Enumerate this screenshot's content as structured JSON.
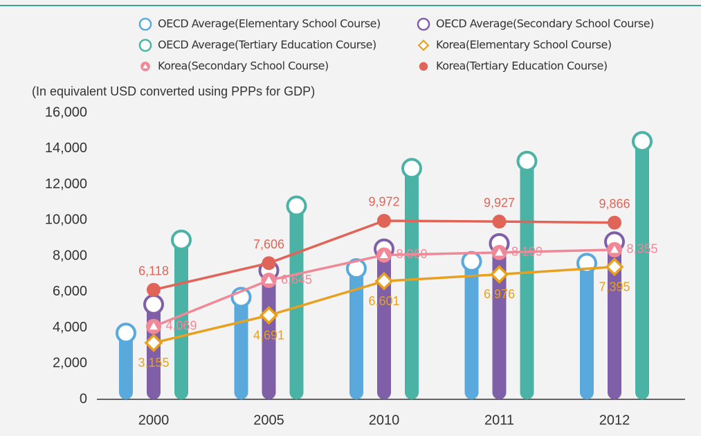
{
  "chart_data": {
    "type": "bar",
    "axis_label": "(In equivalent USD converted using PPPs for GDP)",
    "categories": [
      "2000",
      "2005",
      "2010",
      "2011",
      "2012"
    ],
    "ylim": [
      0,
      16000
    ],
    "yticks": [
      {
        "value": 0,
        "label": "0"
      },
      {
        "value": 2000,
        "label": "2,000"
      },
      {
        "value": 4000,
        "label": "4,000"
      },
      {
        "value": 6000,
        "label": "6,000"
      },
      {
        "value": 8000,
        "label": "8,000"
      },
      {
        "value": 10000,
        "label": "10,000"
      },
      {
        "value": 12000,
        "label": "12,000"
      },
      {
        "value": 14000,
        "label": "14,000"
      },
      {
        "value": 16000,
        "label": "16,000"
      }
    ],
    "series": [
      {
        "name": "OECD Average(Elementary School Course)",
        "type": "bar",
        "marker": "circle",
        "color": "#5aa9dc",
        "values": [
          3700,
          5700,
          7300,
          7700,
          7600
        ]
      },
      {
        "name": "OECD Average(Secondary School Course)",
        "type": "bar",
        "marker": "circle",
        "color": "#7f5fa8",
        "values": [
          5300,
          7200,
          8400,
          8700,
          8800
        ]
      },
      {
        "name": "OECD Average(Tertiary Education Course)",
        "type": "bar",
        "marker": "circle",
        "color": "#4bb3a5",
        "values": [
          8900,
          10800,
          12900,
          13300,
          14400
        ]
      },
      {
        "name": "Korea(Elementary School Course)",
        "type": "line",
        "marker": "diamond",
        "color": "#e8a020",
        "values": [
          3155,
          4691,
          6601,
          6976,
          7395
        ],
        "value_labels": [
          "3,155",
          "4,691",
          "6,601",
          "6,976",
          "7,395"
        ]
      },
      {
        "name": "Korea(Secondary School Course)",
        "type": "line",
        "marker": "triangle",
        "color": "#f08898",
        "values": [
          4069,
          6645,
          8060,
          8199,
          8355
        ],
        "value_labels": [
          "4,069",
          "6,645",
          "8,060",
          "8,199",
          "8,355"
        ]
      },
      {
        "name": "Korea(Tertiary Education Course)",
        "type": "line",
        "marker": "dot",
        "color": "#e06457",
        "values": [
          6118,
          7606,
          9972,
          9927,
          9866
        ],
        "value_labels": [
          "6,118",
          "7,606",
          "9,972",
          "9,927",
          "9,866"
        ]
      }
    ]
  }
}
